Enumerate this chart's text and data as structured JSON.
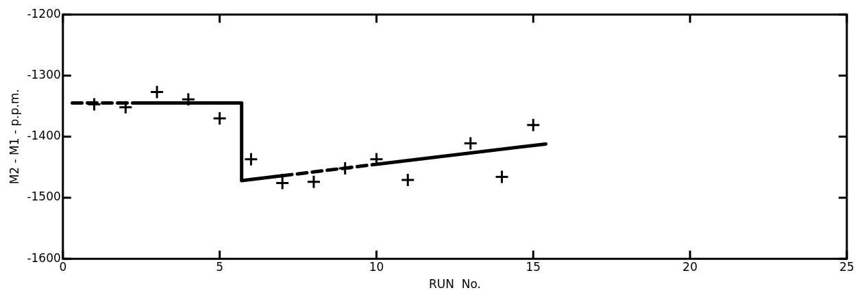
{
  "chart_data": {
    "type": "scatter",
    "xlabel": "RUN  No.",
    "ylabel": "M2 - M1 - p.p.m.",
    "xlim": [
      0,
      25
    ],
    "xticks": [
      0,
      5,
      10,
      15,
      20,
      25
    ],
    "ylim": [
      -1600,
      -1200
    ],
    "yticks": [
      -1600,
      -1500,
      -1400,
      -1300,
      -1200
    ],
    "grid": false,
    "legend": false,
    "marker": "cross",
    "series": [
      {
        "color": "#000000",
        "x": [
          1,
          2,
          3,
          4,
          5,
          6,
          7,
          8,
          9,
          10,
          11,
          13,
          14,
          15
        ],
        "values": [
          -1347,
          -1352,
          -1327,
          -1339,
          -1370,
          -1437,
          -1476,
          -1474,
          -1452,
          -1437,
          -1471,
          -1411,
          -1466,
          -1381
        ]
      },
      {
        "type": "line",
        "color": "#000000",
        "line_style": "dashed",
        "marker": "none",
        "x": [
          0.3,
          2.4
        ],
        "values": [
          -1345,
          -1345
        ]
      },
      {
        "type": "line",
        "color": "#000000",
        "line_style": "solid",
        "marker": "none",
        "x": [
          2.4,
          5.7,
          5.7,
          7.0
        ],
        "values": [
          -1345,
          -1345,
          -1472,
          -1464
        ]
      },
      {
        "type": "line",
        "color": "#000000",
        "line_style": "dashed",
        "marker": "none",
        "x": [
          7.0,
          10.2
        ],
        "values": [
          -1464,
          -1444
        ]
      },
      {
        "type": "line",
        "color": "#000000",
        "line_style": "solid",
        "marker": "none",
        "x": [
          10.2,
          15.4
        ],
        "values": [
          -1444,
          -1412
        ]
      }
    ]
  }
}
